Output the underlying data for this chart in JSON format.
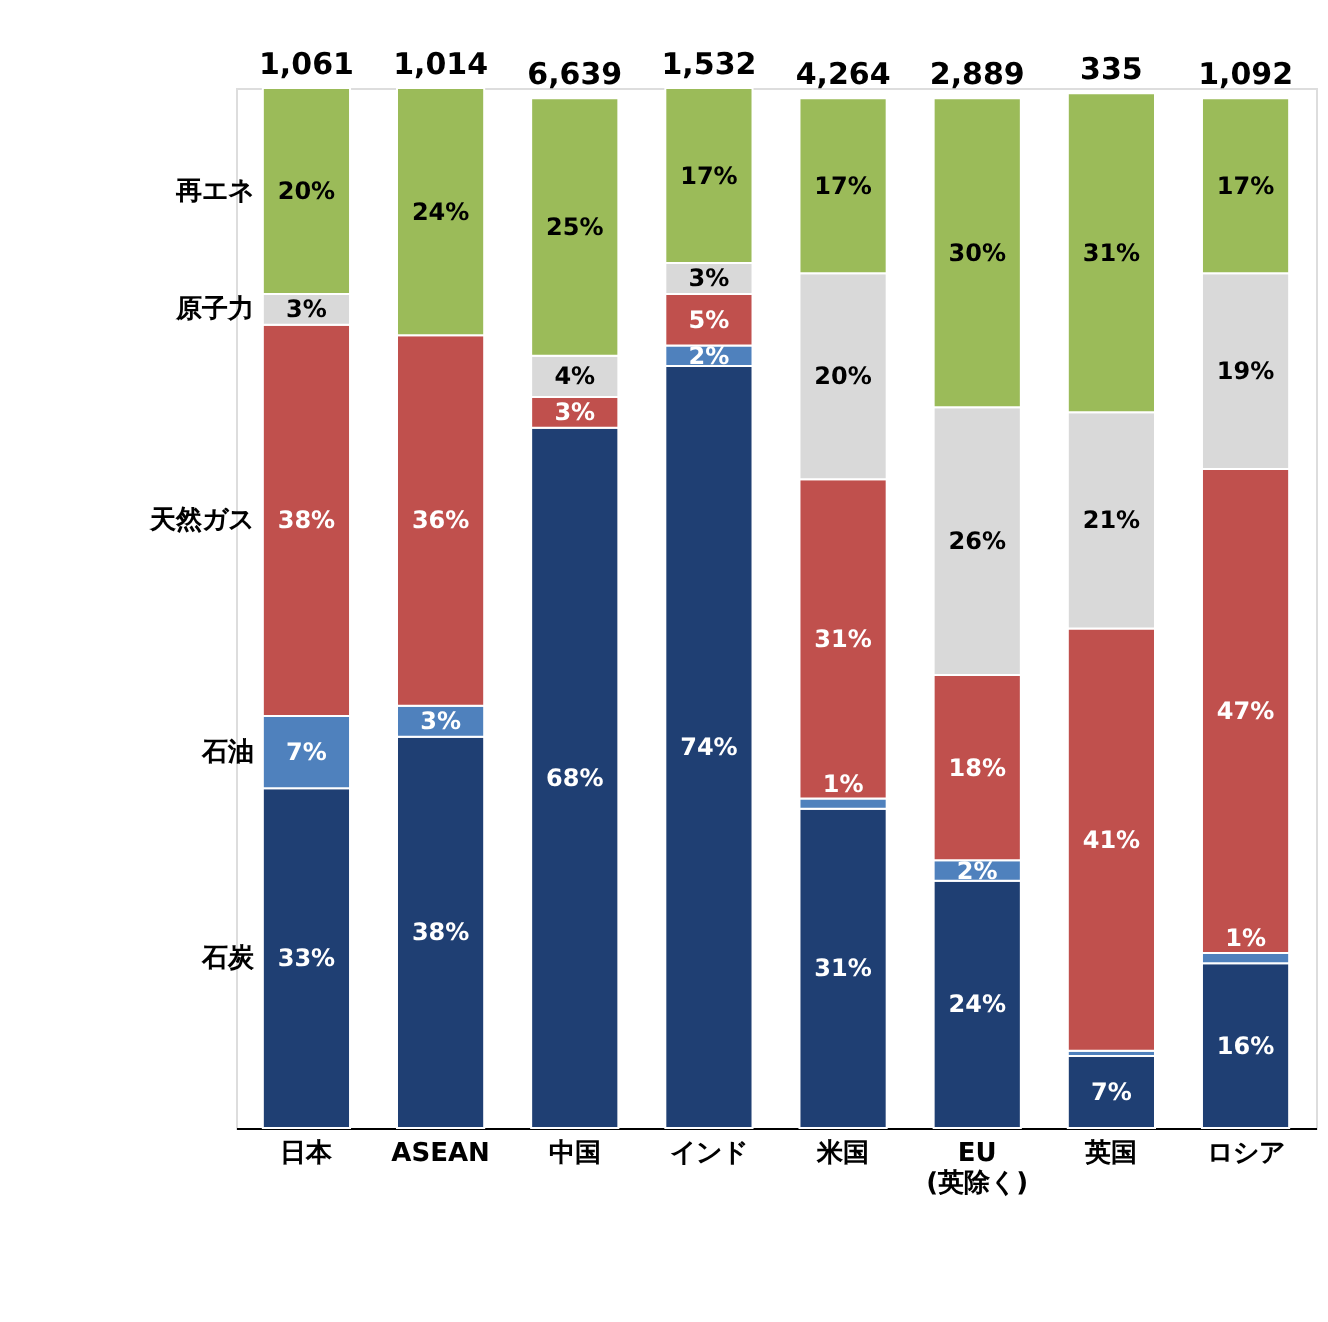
{
  "chart_data": {
    "type": "bar",
    "stacked": true,
    "legend": "left",
    "categories": [
      "日本",
      "ASEAN",
      "中国",
      "インド",
      "米国",
      "EU\n(英除く)",
      "英国",
      "ロシア"
    ],
    "series": [
      {
        "name": "石炭",
        "color": "#1f3f73",
        "values": [
          33,
          38,
          68,
          74,
          31,
          24,
          7,
          16
        ],
        "value_labels": [
          "33%",
          "38%",
          "68%",
          "74%",
          "31%",
          "24%",
          "7%",
          "16%"
        ]
      },
      {
        "name": "石油",
        "color": "#4f81bd",
        "values": [
          7,
          3,
          null,
          2,
          1,
          2,
          0.5,
          1
        ],
        "value_labels": [
          "7%",
          "3%",
          null,
          "2%",
          "1%",
          "2%",
          null,
          "1%"
        ]
      },
      {
        "name": "天然ガス",
        "color": "#c0504d",
        "values": [
          38,
          36,
          3,
          5,
          31,
          18,
          41,
          47
        ],
        "value_labels": [
          "38%",
          "36%",
          "3%",
          "5%",
          "31%",
          "18%",
          "41%",
          "47%"
        ]
      },
      {
        "name": "原子力",
        "color": "#d9d9d9",
        "values": [
          3,
          null,
          4,
          3,
          20,
          26,
          21,
          19
        ],
        "value_labels": [
          "3%",
          null,
          "4%",
          "3%",
          "20%",
          "26%",
          "21%",
          "19%"
        ]
      },
      {
        "name": "再エネ",
        "color": "#9bbb59",
        "values": [
          20,
          24,
          25,
          17,
          17,
          30,
          31,
          17
        ],
        "value_labels": [
          "20%",
          "24%",
          "25%",
          "17%",
          "17%",
          "30%",
          "31%",
          "17%"
        ]
      }
    ],
    "annotations": [
      "1,061",
      "1,014",
      "6,639",
      "1,532",
      "4,264",
      "2,889",
      "335",
      "1,092"
    ]
  }
}
